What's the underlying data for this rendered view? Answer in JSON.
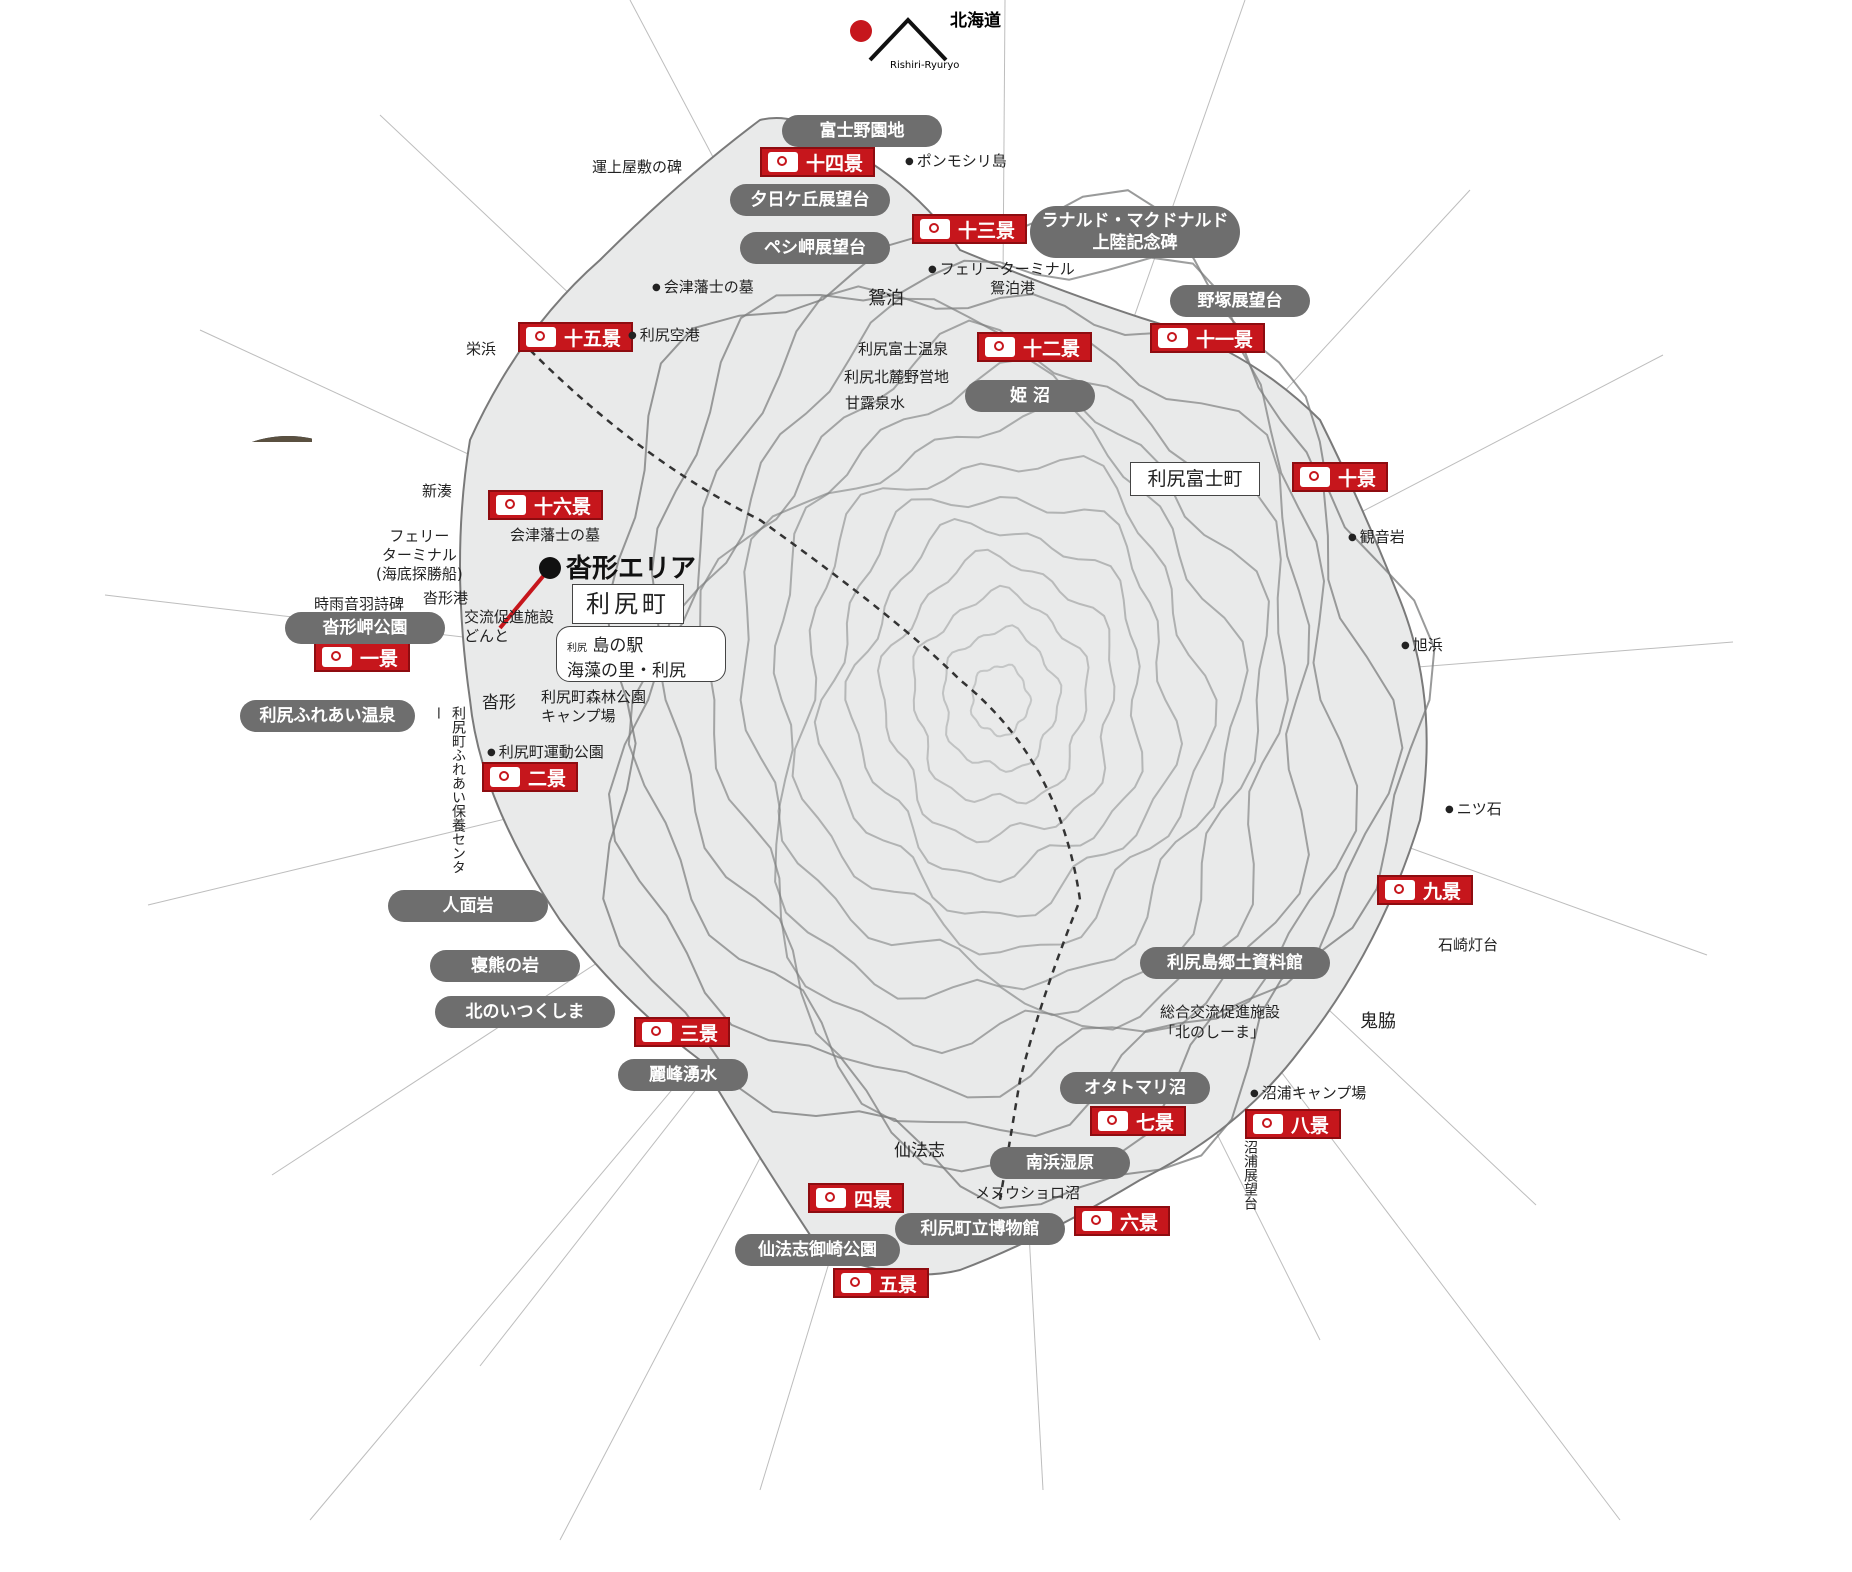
{
  "logo": {
    "text": "北海道",
    "credit": "Rishiri-Ryuryo"
  },
  "area": {
    "area_name": "沓形エリア",
    "town": "利尻町",
    "town_east": "利尻富士町",
    "station_small": "利尻",
    "station_line1": "島の駅",
    "station_line2": "海藻の里・利尻"
  },
  "viewpoints": {
    "v1": "一景",
    "v2": "二景",
    "v3": "三景",
    "v4": "四景",
    "v5": "五景",
    "v6": "六景",
    "v7": "七景",
    "v8": "八景",
    "v9": "九景",
    "v10": "十景",
    "v11": "十一景",
    "v12": "十二景",
    "v13": "十三景",
    "v14": "十四景",
    "v15": "十五景",
    "v16": "十六景"
  },
  "spots": {
    "fuji_yaen": "富士野園地",
    "yuhigaoka": "夕日ケ丘展望台",
    "peshimisaki": "ペシ岬展望台",
    "ranald_1": "ラナルド・マクドナルド",
    "ranald_2": "上陸記念碑",
    "nozuka": "野塚展望台",
    "himenuma": "姫 沼",
    "kyodo": "利尻島郷土資料館",
    "otatomari": "オタトマリ沼",
    "minamihama": "南浜湿原",
    "hakubutsukan": "利尻町立博物館",
    "misaki_park": "仙法志御崎公園",
    "reiho": "麗峰湧水",
    "kitano_itsukushima": "北のいつくしま",
    "negama": "寝熊の岩",
    "jinmen": "人面岩",
    "fureai_onsen": "利尻ふれあい温泉",
    "kutsugata_misaki": "沓形岬公園"
  },
  "labels": {
    "unjoyashiki": "運上屋敷の碑",
    "ponmoshiri": "ポンモシリ島",
    "ferry_oshidomari": "フェリーターミナル",
    "oshidomari_port": "鴛泊港",
    "aizu_1": "会津藩士の墓",
    "rishiri_airport": "利尻空港",
    "oshidomari": "鴛泊",
    "fuji_onsen": "利尻富士温泉",
    "hokuroku_camp": "利尻北麓野営地",
    "kanro": "甘露泉水",
    "sakaehama": "栄浜",
    "shinminato": "新湊",
    "aizu_2": "会津藩士の墓",
    "ferry_kutsugata_1": "フェリー",
    "ferry_kutsugata_2": "ターミナル",
    "ferry_kutsugata_3": "(海底探勝船)",
    "shigure": "時雨音羽詩碑",
    "kutsugata_port": "沓形港",
    "koryu_1": "交流促進施設",
    "koryu_2": "どんと",
    "kutsugata": "沓形",
    "forest_camp_1": "利尻町森林公園",
    "forest_camp_2": "キャンプ場",
    "undo_park": "利尻町運動公園",
    "hoyo_center": "利尻町ふれあい保養センター",
    "kannon": "観音岩",
    "asahihama": "旭浜",
    "futatsuishi": "ニツ石",
    "ishizaki": "石崎灯台",
    "oniwaki": "鬼脇",
    "sogo_1": "総合交流促進施設",
    "sogo_2": "「北のしーま」",
    "numaura_camp": "沼浦キャンプ場",
    "numaura_view": "沼浦展望台",
    "senposhi": "仙法志",
    "mezusho": "メヌウショロ沼"
  },
  "photos": [
    "photo-1",
    "photo-2",
    "photo-3",
    "photo-4",
    "photo-5",
    "photo-6",
    "photo-7",
    "photo-8",
    "photo-9",
    "photo-10",
    "photo-11",
    "photo-12",
    "photo-13",
    "photo-14",
    "photo-15",
    "photo-16",
    "photo-17",
    "photo-18",
    "photo-19",
    "photo-20"
  ],
  "colors": {
    "accent_red": "#c6161c",
    "pill_gray": "#6e6e6e",
    "sky": "#2f72b8"
  }
}
